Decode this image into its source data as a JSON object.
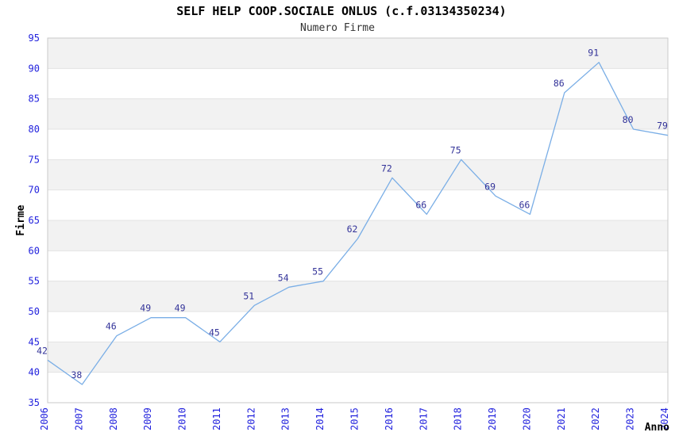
{
  "chart": {
    "title": "SELF HELP COOP.SOCIALE ONLUS (c.f.03134350234)",
    "subtitle": "Numero Firme"
  },
  "chart_data": {
    "type": "line",
    "title": "SELF HELP COOP.SOCIALE ONLUS (c.f.03134350234)",
    "subtitle": "Numero Firme",
    "xlabel": "Anno",
    "ylabel": "Firme",
    "categories": [
      "2006",
      "2007",
      "2008",
      "2009",
      "2010",
      "2011",
      "2012",
      "2013",
      "2014",
      "2015",
      "2016",
      "2017",
      "2018",
      "2019",
      "2020",
      "2021",
      "2022",
      "2023",
      "2024"
    ],
    "values": [
      42,
      38,
      46,
      49,
      49,
      45,
      51,
      54,
      55,
      62,
      72,
      66,
      75,
      69,
      66,
      86,
      91,
      80,
      79
    ],
    "ylim": [
      35,
      95
    ],
    "ytick_step": 5,
    "grid": "horizontal-alternating-bands",
    "legend": "none",
    "colors": {
      "line": "#7aaee6",
      "tick_label": "#2222dd",
      "point_label": "#333399",
      "band_gray": "#f2f2f2",
      "grid_line": "#e3e3e3",
      "border": "#c9c9c9",
      "title": "#000000",
      "subtitle": "#333333",
      "axis_title": "#000000",
      "background": "#ffffff"
    }
  }
}
